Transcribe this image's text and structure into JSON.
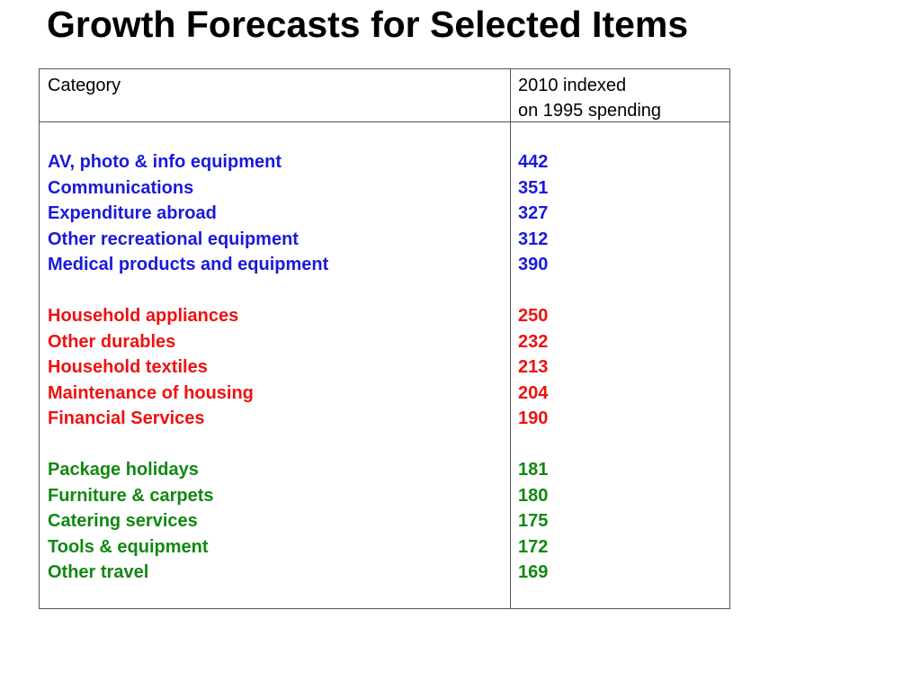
{
  "title": "Growth Forecasts for Selected Items",
  "table": {
    "header": {
      "category": "Category",
      "value_line1": "2010 indexed",
      "value_line2": "on 1995 spending"
    },
    "colors": {
      "group1": "#1a1adb",
      "group2": "#ee1111",
      "group3": "#118811"
    },
    "groups": [
      {
        "rows": [
          {
            "category": "AV, photo & info equipment",
            "value": "442"
          },
          {
            "category": "Communications",
            "value": "351"
          },
          {
            "category": "Expenditure abroad",
            "value": "327"
          },
          {
            "category": "Other recreational equipment",
            "value": "312"
          },
          {
            "category": "Medical products and equipment",
            "value": "390"
          }
        ]
      },
      {
        "rows": [
          {
            "category": "Household appliances",
            "value": "250"
          },
          {
            "category": "Other durables",
            "value": "232"
          },
          {
            "category": "Household textiles",
            "value": "213"
          },
          {
            "category": "Maintenance of housing",
            "value": "204"
          },
          {
            "category": "Financial Services",
            "value": "190"
          }
        ]
      },
      {
        "rows": [
          {
            "category": "Package holidays",
            "value": "181"
          },
          {
            "category": "Furniture & carpets",
            "value": "180"
          },
          {
            "category": "Catering services",
            "value": "175"
          },
          {
            "category": "Tools & equipment",
            "value": "172"
          },
          {
            "category": "Other travel",
            "value": "169"
          }
        ]
      }
    ]
  }
}
